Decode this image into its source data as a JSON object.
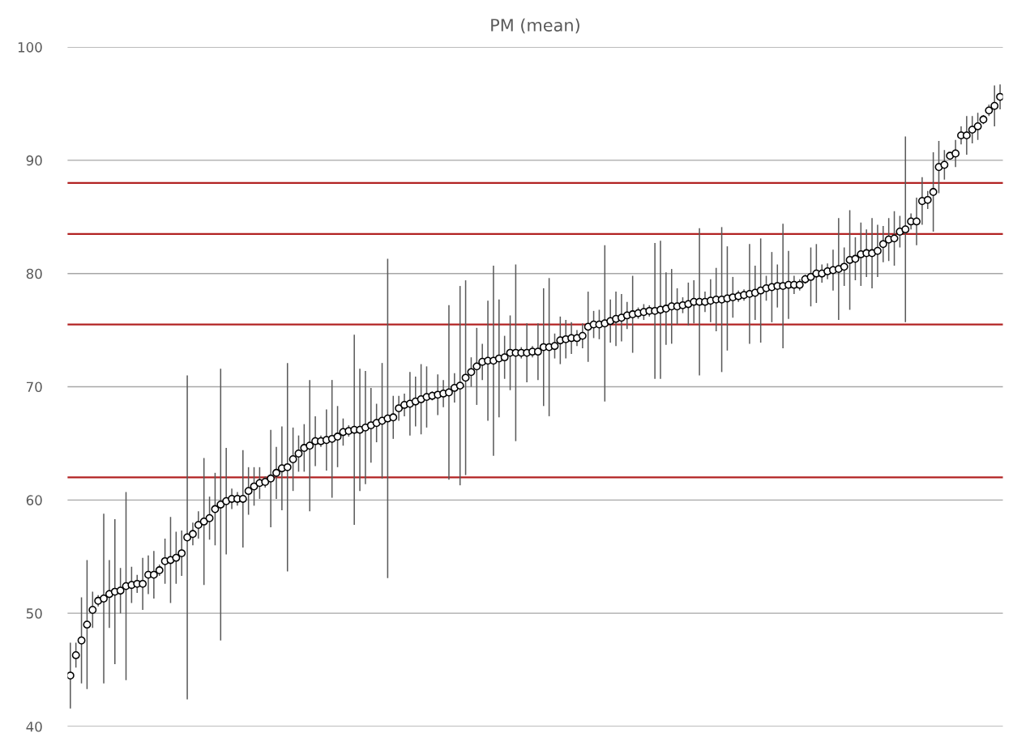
{
  "chart_data": {
    "type": "scatter",
    "title": "PM (mean)",
    "categories": [
      null,
      null,
      null,
      null,
      null,
      null,
      null,
      null,
      null,
      null,
      null,
      null,
      null,
      null,
      null,
      null,
      null,
      null,
      null,
      null,
      null,
      null,
      null,
      null,
      null,
      null,
      null,
      null,
      null,
      null,
      null,
      null,
      null,
      null,
      null,
      null,
      null,
      null,
      null,
      null,
      null,
      null,
      null,
      null,
      null,
      null,
      null,
      null,
      null,
      null,
      null,
      null,
      null,
      null,
      null,
      null,
      null,
      null,
      null,
      null,
      null,
      null,
      null,
      null,
      null,
      null,
      null,
      null,
      null,
      null,
      null,
      null,
      null,
      null,
      null,
      null,
      null,
      null,
      null,
      null,
      null,
      null,
      null,
      null,
      null,
      null,
      null,
      null,
      null,
      null,
      null,
      null,
      null,
      null,
      null,
      null,
      null,
      null,
      null,
      null,
      null,
      null,
      null,
      null,
      null,
      null,
      null,
      null,
      null,
      null,
      null,
      null,
      null,
      null,
      null,
      null,
      null,
      null,
      null,
      null,
      null,
      null,
      null,
      null,
      null,
      null,
      null,
      null,
      null,
      null,
      null,
      null,
      null,
      null,
      null,
      null,
      null,
      null,
      null,
      null,
      null,
      null,
      null,
      null,
      null,
      null,
      null,
      null,
      null,
      null,
      null,
      null,
      null,
      null,
      null,
      null,
      null,
      null,
      null,
      null,
      null,
      null,
      null,
      null,
      null,
      null,
      null,
      null
    ],
    "series": [
      {
        "color": "#ffffff",
        "values": [
          44.5,
          46.3,
          47.6,
          49.0,
          50.3,
          51.1,
          51.3,
          51.7,
          51.9,
          52.0,
          52.4,
          52.5,
          52.6,
          52.6,
          53.4,
          53.4,
          53.8,
          54.6,
          54.7,
          54.9,
          55.3,
          56.7,
          57.0,
          57.8,
          58.1,
          58.4,
          59.2,
          59.6,
          59.9,
          60.1,
          60.1,
          60.1,
          60.8,
          61.2,
          61.5,
          61.6,
          61.9,
          62.4,
          62.8,
          62.9,
          63.6,
          64.1,
          64.6,
          64.8,
          65.2,
          65.2,
          65.3,
          65.4,
          65.6,
          66.0,
          66.1,
          66.2,
          66.2,
          66.4,
          66.6,
          66.8,
          67.0,
          67.2,
          67.3,
          68.1,
          68.4,
          68.5,
          68.7,
          68.9,
          69.1,
          69.2,
          69.3,
          69.4,
          69.5,
          69.9,
          70.1,
          70.8,
          71.3,
          71.8,
          72.2,
          72.3,
          72.3,
          72.5,
          72.6,
          73.0,
          73.0,
          73.0,
          73.0,
          73.1,
          73.1,
          73.5,
          73.5,
          73.6,
          74.1,
          74.2,
          74.3,
          74.3,
          74.5,
          75.3,
          75.5,
          75.5,
          75.6,
          75.8,
          76.0,
          76.1,
          76.3,
          76.4,
          76.5,
          76.6,
          76.7,
          76.7,
          76.8,
          76.9,
          77.1,
          77.1,
          77.2,
          77.3,
          77.5,
          77.5,
          77.5,
          77.6,
          77.7,
          77.7,
          77.8,
          77.9,
          78.0,
          78.1,
          78.2,
          78.3,
          78.5,
          78.7,
          78.8,
          78.9,
          78.9,
          79.0,
          79.0,
          79.0,
          79.5,
          79.7,
          80.0,
          80.0,
          80.2,
          80.3,
          80.4,
          80.6,
          81.2,
          81.3,
          81.7,
          81.8,
          81.8,
          82.0,
          82.6,
          83.0,
          83.1,
          83.7,
          83.9,
          84.6,
          84.6,
          86.4,
          86.5,
          87.2,
          89.4,
          89.6,
          90.4,
          90.6,
          92.2,
          92.2,
          92.7,
          93.0,
          93.6,
          94.4,
          94.8,
          95.6
        ],
        "errors": [
          2.9,
          1.1,
          3.8,
          5.7,
          1.6,
          0.5,
          7.5,
          3.0,
          6.4,
          2.0,
          8.3,
          1.6,
          0.8,
          2.3,
          1.7,
          2.1,
          0.5,
          2.0,
          3.8,
          2.3,
          2.0,
          14.3,
          1.0,
          1.2,
          5.6,
          1.9,
          3.2,
          12.0,
          4.7,
          0.9,
          0.6,
          4.3,
          2.1,
          1.7,
          1.4,
          0.5,
          4.3,
          2.3,
          3.7,
          9.2,
          2.8,
          1.6,
          2.1,
          5.8,
          2.2,
          0.5,
          2.7,
          5.2,
          2.7,
          1.2,
          0.5,
          8.4,
          5.4,
          5.0,
          3.3,
          1.7,
          5.1,
          14.1,
          1.9,
          1.1,
          1.0,
          2.8,
          2.2,
          3.1,
          2.7,
          0.4,
          1.8,
          1.2,
          7.7,
          1.3,
          8.8,
          8.6,
          1.3,
          3.4,
          1.6,
          5.3,
          8.4,
          5.2,
          1.9,
          3.3,
          7.8,
          0.5,
          2.6,
          0.5,
          2.5,
          5.2,
          6.1,
          1.1,
          2.1,
          1.7,
          1.4,
          0.7,
          1.1,
          3.1,
          1.2,
          1.3,
          6.9,
          1.9,
          2.4,
          2.1,
          1.2,
          3.4,
          0.5,
          0.7,
          0.5,
          6.0,
          6.1,
          3.2,
          3.3,
          1.6,
          0.7,
          1.9,
          1.9,
          6.5,
          0.9,
          1.9,
          2.8,
          6.4,
          4.6,
          1.8,
          0.5,
          0.5,
          4.4,
          2.4,
          4.6,
          1.1,
          3.1,
          1.9,
          5.5,
          3.0,
          0.8,
          0.5,
          0.4,
          2.6,
          2.6,
          0.8,
          0.7,
          1.8,
          4.5,
          1.7,
          4.4,
          1.9,
          2.8,
          2.1,
          3.1,
          2.3,
          1.6,
          1.9,
          2.4,
          1.4,
          8.2,
          0.7,
          2.1,
          2.1,
          0.8,
          3.5,
          2.3,
          1.3,
          0.3,
          1.2,
          0.8,
          1.7,
          1.2,
          1.2,
          0.4,
          0.5,
          1.8,
          1.1
        ]
      }
    ],
    "ylim": [
      40,
      100
    ],
    "yticks": [
      40,
      50,
      60,
      70,
      80,
      90,
      100
    ],
    "tick_labels": "y",
    "grid": "y",
    "marker": "circle",
    "legend": false,
    "ref_lines": [
      {
        "axis": "y",
        "value": 88,
        "color": "#b22222"
      },
      {
        "axis": "y",
        "value": 83.5,
        "color": "#b22222"
      },
      {
        "axis": "y",
        "value": 75.5,
        "color": "#b22222"
      },
      {
        "axis": "y",
        "value": 62,
        "color": "#b22222"
      }
    ]
  }
}
